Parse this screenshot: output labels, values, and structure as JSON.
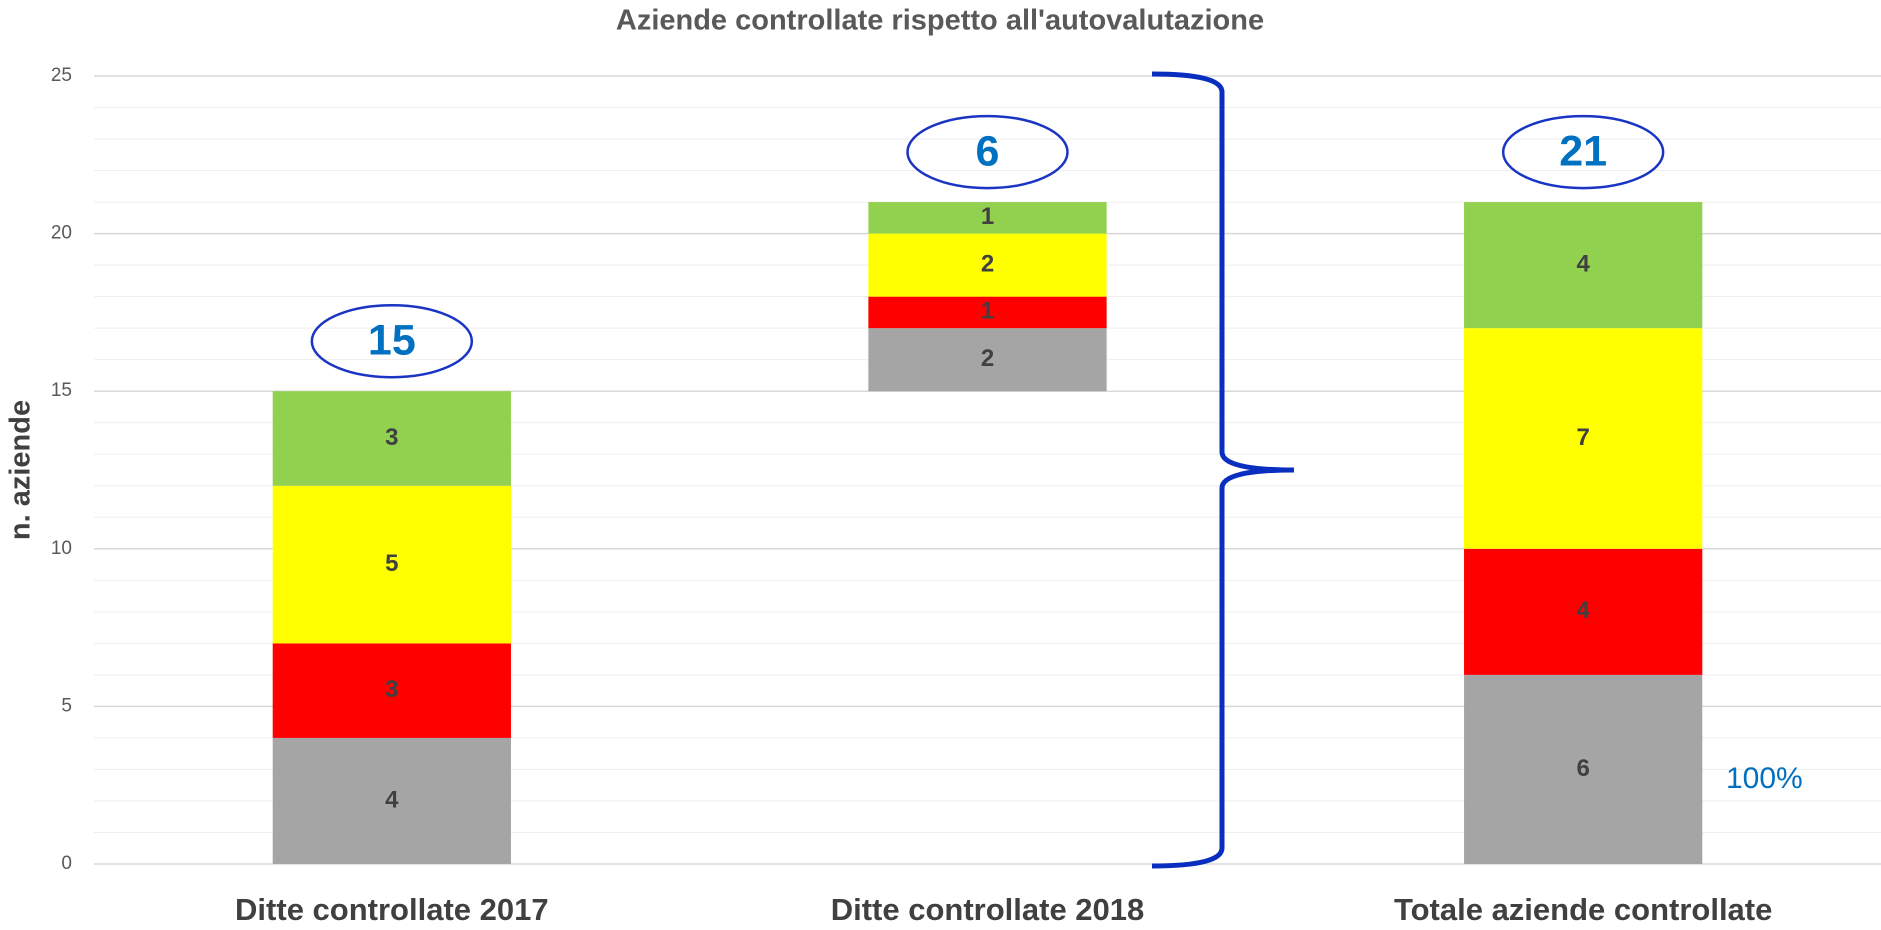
{
  "chart_data": {
    "type": "stacked_waterfall",
    "title": "Aziende controllate rispetto all'autovalutazione",
    "y_label": "n. aziende",
    "categories": [
      "Ditte controllate 2017",
      "Ditte controllate 2018",
      "Totale aziende controllate"
    ],
    "is_total": [
      false,
      false,
      true
    ],
    "series": [
      {
        "color": "#a5a5a5",
        "values": [
          4,
          2,
          6
        ]
      },
      {
        "color": "#ff0000",
        "values": [
          3,
          1,
          4
        ]
      },
      {
        "color": "#ffff00",
        "values": [
          5,
          2,
          7
        ]
      },
      {
        "color": "#92d050",
        "values": [
          3,
          1,
          4
        ]
      }
    ],
    "totals": [
      15,
      6,
      21
    ],
    "annotation": "100%",
    "ylim": [
      0,
      25
    ],
    "yticks": [
      0,
      5,
      10,
      15,
      20,
      25
    ],
    "grid": true,
    "minor_grid_step": 1
  }
}
